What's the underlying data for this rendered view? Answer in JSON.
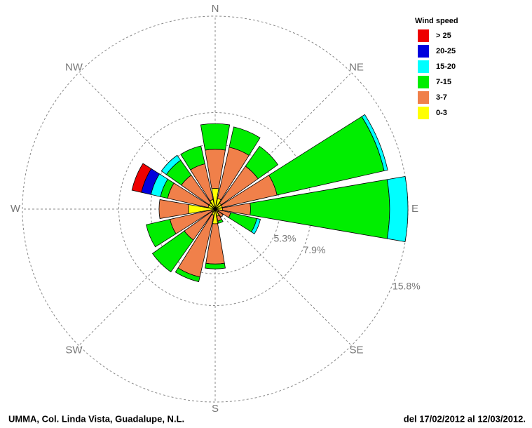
{
  "chart_data": {
    "type": "windrose",
    "categories": [
      "N",
      null,
      "NE",
      null,
      "E",
      null,
      "SE",
      null,
      "S",
      null,
      "SW",
      null,
      "W",
      null,
      "NW",
      null
    ],
    "legend_title": "Wind speed",
    "series": [
      {
        "name": "0-3",
        "color": "#ffff00",
        "values": [
          1.7,
          0.9,
          0.6,
          0.6,
          0.6,
          0.3,
          0.3,
          0.6,
          1.2,
          0.5,
          0.3,
          0.3,
          2.2,
          0.6,
          0.6,
          0.8
        ]
      },
      {
        "name": "3-7",
        "color": "#f0804a",
        "values": [
          3.2,
          4.3,
          3.7,
          4.6,
          2.3,
          1.0,
          0.5,
          0.4,
          3.3,
          5.2,
          2.8,
          3.5,
          2.4,
          3.4,
          2.8,
          3.0
        ]
      },
      {
        "name": "7-15",
        "color": "#00ee00",
        "values": [
          2.1,
          1.7,
          2.0,
          9.0,
          11.4,
          2.2,
          0,
          0.2,
          0.4,
          0.4,
          3.2,
          2.0,
          0,
          0.6,
          1.5,
          1.5
        ]
      },
      {
        "name": "15-20",
        "color": "#00ffff",
        "values": [
          0,
          0,
          0,
          0.3,
          1.5,
          0.3,
          0,
          0,
          0,
          0,
          0,
          0,
          0,
          0.8,
          0.5,
          0
        ]
      },
      {
        "name": "20-25",
        "color": "#0000dd",
        "values": [
          0,
          0,
          0,
          0,
          0,
          0,
          0,
          0,
          0,
          0,
          0,
          0,
          0,
          0.8,
          0,
          0
        ]
      },
      {
        "name": "> 25",
        "color": "#ee0000",
        "values": [
          0,
          0,
          0,
          0,
          0,
          0,
          0,
          0,
          0,
          0,
          0,
          0,
          0,
          0.8,
          0,
          0
        ]
      }
    ],
    "rlim": [
      0,
      15.8
    ],
    "rticks": [
      {
        "value": 5.3,
        "label": "5.3%"
      },
      {
        "value": 7.9,
        "label": "7.9%"
      },
      {
        "value": 15.8,
        "label": "15.8%"
      }
    ],
    "footer_left": "UMMA, Col. Linda Vista, Guadalupe, N.L.",
    "footer_right": "del 17/02/2012 al 12/03/2012."
  }
}
